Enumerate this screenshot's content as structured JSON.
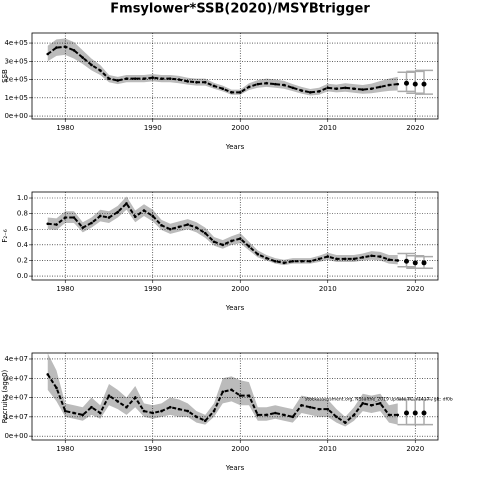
{
  "title": "Fmsylower*SSB(2020)/MSYBtrigger",
  "annotation": "stockassessment.org, NSsaithe_2019 update FC, r1417 , git: df0b",
  "chart_data": [
    {
      "type": "line",
      "ylabel": "SSB",
      "xlabel": "Years",
      "color": "#000000",
      "band_color": "#bbbbbb",
      "grid": true,
      "xlim": [
        1976.2,
        2022.6
      ],
      "xticks": [
        1980,
        1990,
        2000,
        2010,
        2020
      ],
      "ylim": [
        -16000,
        455000
      ],
      "yticks": [
        {
          "value": 0,
          "label": "0e+00"
        },
        {
          "value": 100000,
          "label": "1e+05"
        },
        {
          "value": 200000,
          "label": "2e+05"
        },
        {
          "value": 300000,
          "label": "3e+05"
        },
        {
          "value": 400000,
          "label": "4e+05"
        }
      ],
      "x": [
        1978,
        1979,
        1980,
        1981,
        1982,
        1983,
        1984,
        1985,
        1986,
        1987,
        1988,
        1989,
        1990,
        1991,
        1992,
        1993,
        1994,
        1995,
        1996,
        1997,
        1998,
        1999,
        2000,
        2001,
        2002,
        2003,
        2004,
        2005,
        2006,
        2007,
        2008,
        2009,
        2010,
        2011,
        2012,
        2013,
        2014,
        2015,
        2016,
        2017,
        2018
      ],
      "values": [
        340000,
        375000,
        380000,
        360000,
        320000,
        280000,
        250000,
        205000,
        195000,
        205000,
        205000,
        205000,
        210000,
        205000,
        205000,
        200000,
        190000,
        185000,
        185000,
        165000,
        150000,
        130000,
        130000,
        160000,
        175000,
        180000,
        175000,
        170000,
        155000,
        140000,
        130000,
        135000,
        155000,
        150000,
        155000,
        150000,
        145000,
        150000,
        160000,
        170000,
        175000
      ],
      "low": [
        300000,
        330000,
        335000,
        315000,
        285000,
        250000,
        225000,
        185000,
        175000,
        185000,
        185000,
        185000,
        190000,
        185000,
        185000,
        180000,
        172000,
        167000,
        167000,
        150000,
        135000,
        117000,
        117000,
        143000,
        155000,
        160000,
        155000,
        150000,
        137000,
        123000,
        113000,
        117000,
        135000,
        130000,
        133000,
        128000,
        122000,
        125000,
        132000,
        138000,
        140000
      ],
      "high": [
        385000,
        420000,
        425000,
        405000,
        360000,
        315000,
        280000,
        225000,
        215000,
        225000,
        225000,
        225000,
        230000,
        225000,
        225000,
        220000,
        210000,
        205000,
        205000,
        182000,
        167000,
        145000,
        145000,
        180000,
        197000,
        205000,
        200000,
        193000,
        175000,
        160000,
        148000,
        155000,
        177000,
        172000,
        180000,
        175000,
        170000,
        178000,
        192000,
        205000,
        215000
      ],
      "forecast_x": [
        2019,
        2020,
        2021
      ],
      "forecast_values": [
        180000,
        175000,
        175000
      ],
      "forecast_low": [
        135000,
        125000,
        120000
      ],
      "forecast_high": [
        240000,
        245000,
        250000
      ]
    },
    {
      "type": "line",
      "ylabel": "F₂₋₆",
      "xlabel": "Years",
      "color": "#000000",
      "band_color": "#bbbbbb",
      "grid": true,
      "xlim": [
        1976.2,
        2022.6
      ],
      "xticks": [
        1980,
        1990,
        2000,
        2010,
        2020
      ],
      "ylim": [
        -0.05,
        1.077
      ],
      "yticks": [
        {
          "value": 0,
          "label": "0.0"
        },
        0.2,
        0.4,
        0.6,
        0.8,
        {
          "value": 1,
          "label": "1.0"
        }
      ],
      "x": [
        1978,
        1979,
        1980,
        1981,
        1982,
        1983,
        1984,
        1985,
        1986,
        1987,
        1988,
        1989,
        1990,
        1991,
        1992,
        1993,
        1994,
        1995,
        1996,
        1997,
        1998,
        1999,
        2000,
        2001,
        2002,
        2003,
        2004,
        2005,
        2006,
        2007,
        2008,
        2009,
        2010,
        2011,
        2012,
        2013,
        2014,
        2015,
        2016,
        2017,
        2018
      ],
      "values": [
        0.67,
        0.66,
        0.75,
        0.75,
        0.62,
        0.68,
        0.77,
        0.75,
        0.82,
        0.93,
        0.76,
        0.84,
        0.77,
        0.65,
        0.6,
        0.63,
        0.66,
        0.62,
        0.55,
        0.44,
        0.4,
        0.45,
        0.48,
        0.38,
        0.28,
        0.23,
        0.19,
        0.17,
        0.19,
        0.19,
        0.19,
        0.22,
        0.25,
        0.22,
        0.22,
        0.22,
        0.24,
        0.26,
        0.25,
        0.21,
        0.2
      ],
      "low": [
        0.6,
        0.59,
        0.68,
        0.68,
        0.56,
        0.62,
        0.7,
        0.68,
        0.75,
        0.85,
        0.69,
        0.77,
        0.7,
        0.59,
        0.54,
        0.57,
        0.6,
        0.56,
        0.49,
        0.39,
        0.35,
        0.4,
        0.42,
        0.33,
        0.24,
        0.2,
        0.16,
        0.14,
        0.16,
        0.16,
        0.16,
        0.18,
        0.21,
        0.18,
        0.18,
        0.18,
        0.2,
        0.21,
        0.2,
        0.16,
        0.15
      ],
      "high": [
        0.75,
        0.74,
        0.83,
        0.83,
        0.69,
        0.75,
        0.85,
        0.83,
        0.9,
        1.02,
        0.84,
        0.92,
        0.85,
        0.72,
        0.67,
        0.7,
        0.73,
        0.69,
        0.62,
        0.5,
        0.46,
        0.51,
        0.55,
        0.44,
        0.33,
        0.27,
        0.23,
        0.21,
        0.23,
        0.23,
        0.23,
        0.26,
        0.3,
        0.27,
        0.27,
        0.27,
        0.29,
        0.32,
        0.31,
        0.27,
        0.27
      ],
      "forecast_x": [
        2019,
        2020,
        2021
      ],
      "forecast_values": [
        0.19,
        0.17,
        0.17
      ],
      "forecast_low": [
        0.12,
        0.1,
        0.1
      ],
      "forecast_high": [
        0.29,
        0.26,
        0.25
      ]
    },
    {
      "type": "line",
      "ylabel": "Recruits (age0)",
      "xlabel": "Years",
      "color": "#000000",
      "band_color": "#bbbbbb",
      "grid": true,
      "xlim": [
        1976.2,
        2022.6
      ],
      "xticks": [
        1980,
        1990,
        2000,
        2010,
        2020
      ],
      "ylim": [
        -2000000,
        43100000
      ],
      "yticks": [
        {
          "value": 0,
          "label": "0e+00"
        },
        {
          "value": 10000000,
          "label": "1e+07"
        },
        {
          "value": 20000000,
          "label": "2e+07"
        },
        {
          "value": 30000000,
          "label": "3e+07"
        },
        {
          "value": 40000000,
          "label": "4e+07"
        }
      ],
      "x": [
        1978,
        1979,
        1980,
        1981,
        1982,
        1983,
        1984,
        1985,
        1986,
        1987,
        1988,
        1989,
        1990,
        1991,
        1992,
        1993,
        1994,
        1995,
        1996,
        1997,
        1998,
        1999,
        2000,
        2001,
        2002,
        2003,
        2004,
        2005,
        2006,
        2007,
        2008,
        2009,
        2010,
        2011,
        2012,
        2013,
        2014,
        2015,
        2016,
        2017,
        2018
      ],
      "values": [
        32000000,
        25000000,
        13000000,
        12000000,
        11000000,
        15000000,
        12000000,
        21000000,
        18000000,
        15000000,
        20000000,
        13000000,
        12000000,
        13000000,
        15000000,
        14000000,
        13000000,
        10000000,
        8000000,
        13000000,
        23000000,
        24000000,
        21000000,
        21000000,
        11000000,
        11000000,
        12000000,
        11000000,
        10000000,
        16000000,
        15000000,
        14000000,
        14000000,
        10000000,
        7000000,
        11000000,
        17000000,
        16000000,
        17000000,
        11000000,
        11000000
      ],
      "low": [
        24000000,
        18000000,
        10000000,
        9000000,
        8000000,
        11000000,
        9000000,
        16000000,
        14000000,
        11000000,
        15000000,
        10000000,
        9000000,
        10000000,
        11000000,
        10000000,
        10000000,
        7000000,
        6000000,
        10000000,
        17000000,
        18000000,
        16000000,
        16000000,
        8000000,
        8000000,
        9000000,
        8000000,
        7000000,
        12000000,
        11000000,
        10000000,
        10000000,
        7000000,
        5000000,
        8000000,
        13000000,
        12000000,
        13000000,
        7000000,
        6000000
      ],
      "high": [
        43000000,
        34000000,
        17000000,
        16000000,
        15000000,
        20000000,
        16000000,
        27000000,
        24000000,
        20000000,
        26000000,
        17000000,
        16000000,
        17000000,
        20000000,
        19000000,
        17000000,
        13000000,
        11000000,
        17000000,
        30000000,
        31000000,
        29000000,
        28000000,
        15000000,
        15000000,
        16000000,
        15000000,
        14000000,
        21000000,
        20000000,
        19000000,
        19000000,
        14000000,
        10000000,
        15000000,
        22000000,
        21000000,
        22000000,
        16000000,
        17000000
      ],
      "forecast_x": [
        2019,
        2020,
        2021
      ],
      "forecast_values": [
        12000000,
        12000000,
        12000000
      ],
      "forecast_low": [
        6000000,
        6000000,
        6000000
      ],
      "forecast_high": [
        19000000,
        19000000,
        19000000
      ]
    }
  ]
}
